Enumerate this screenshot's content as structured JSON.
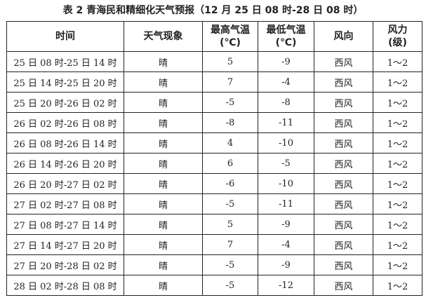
{
  "title": "表 2 青海民和精细化天气预报（12 月 25 日 08 时-28 日 08 时）",
  "headers": [
    "时间",
    "天气现象",
    "最高气温\n(℃)",
    "最低气温\n(℃)",
    "风向",
    "风力\n(级)"
  ],
  "rows": [
    [
      "25 日 08 时-25 日 14 时",
      "晴",
      "5",
      "-9",
      "西风",
      "1～2"
    ],
    [
      "25 日 14 时-25 日 20 时",
      "晴",
      "7",
      "-4",
      "西风",
      "1～2"
    ],
    [
      "25 日 20 时-26 日 02 时",
      "晴",
      "-5",
      "-8",
      "西风",
      "1～2"
    ],
    [
      "26 日 02 时-26 日 08 时",
      "晴",
      "-8",
      "-11",
      "西风",
      "1～2"
    ],
    [
      "26 日 08 时-26 日 14 时",
      "晴",
      "4",
      "-10",
      "西风",
      "1～2"
    ],
    [
      "26 日 14 时-26 日 20 时",
      "晴",
      "6",
      "-5",
      "西风",
      "1～2"
    ],
    [
      "26 日 20 时-27 日 02 时",
      "晴",
      "-6",
      "-10",
      "西风",
      "1～2"
    ],
    [
      "27 日 02 时-27 日 08 时",
      "晴",
      "-5",
      "-11",
      "西风",
      "1～2"
    ],
    [
      "27 日 08 时-27 日 14 时",
      "晴",
      "5",
      "-9",
      "西风",
      "1～2"
    ],
    [
      "27 日 14 时-27 日 20 时",
      "晴",
      "7",
      "-4",
      "西风",
      "1～2"
    ],
    [
      "27 日 20 时-28 日 02 时",
      "晴",
      "-5",
      "-9",
      "西风",
      "1～2"
    ],
    [
      "28 日 02 时-28 日 08 时",
      "晴",
      "-5",
      "-12",
      "西风",
      "1～2"
    ]
  ]
}
